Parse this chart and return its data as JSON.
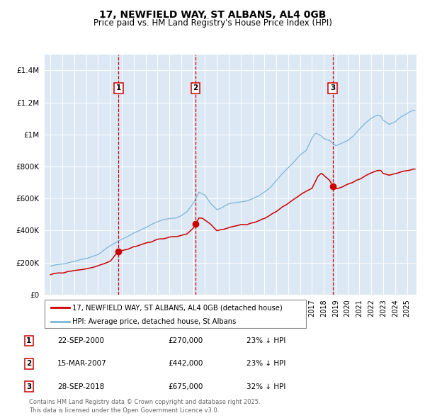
{
  "title_line1": "17, NEWFIELD WAY, ST ALBANS, AL4 0GB",
  "title_line2": "Price paid vs. HM Land Registry's House Price Index (HPI)",
  "bg_color": "#dce9f5",
  "red_line_color": "#cc0000",
  "blue_line_color": "#7bb4d8",
  "vline_color": "#cc0000",
  "transactions": [
    {
      "label": "1",
      "date_num": 2000.73,
      "price": 270000,
      "pct": "23%",
      "date_str": "22-SEP-2000"
    },
    {
      "label": "2",
      "date_num": 2007.21,
      "price": 442000,
      "pct": "23%",
      "date_str": "15-MAR-2007"
    },
    {
      "label": "3",
      "date_num": 2018.74,
      "price": 675000,
      "pct": "32%",
      "date_str": "28-SEP-2018"
    }
  ],
  "legend_entries": [
    "17, NEWFIELD WAY, ST ALBANS, AL4 0GB (detached house)",
    "HPI: Average price, detached house, St Albans"
  ],
  "footer_line1": "Contains HM Land Registry data © Crown copyright and database right 2025.",
  "footer_line2": "This data is licensed under the Open Government Licence v3.0.",
  "ylim": [
    0,
    1500000
  ],
  "yticks": [
    0,
    200000,
    400000,
    600000,
    800000,
    1000000,
    1200000,
    1400000
  ],
  "ytick_labels": [
    "£0",
    "£200K",
    "£400K",
    "£600K",
    "£800K",
    "£1M",
    "£1.2M",
    "£1.4M"
  ],
  "xlim_start": 1994.5,
  "xlim_end": 2025.8,
  "hpi_cp": [
    [
      1995.0,
      175000
    ],
    [
      1996.0,
      195000
    ],
    [
      1997.0,
      210000
    ],
    [
      1998.0,
      228000
    ],
    [
      1999.0,
      252000
    ],
    [
      2000.0,
      305000
    ],
    [
      2001.0,
      345000
    ],
    [
      2002.0,
      385000
    ],
    [
      2002.5,
      400000
    ],
    [
      2003.5,
      440000
    ],
    [
      2004.5,
      468000
    ],
    [
      2005.5,
      478000
    ],
    [
      2006.0,
      495000
    ],
    [
      2006.5,
      520000
    ],
    [
      2007.0,
      570000
    ],
    [
      2007.5,
      640000
    ],
    [
      2008.0,
      620000
    ],
    [
      2008.5,
      565000
    ],
    [
      2009.0,
      530000
    ],
    [
      2009.5,
      545000
    ],
    [
      2010.0,
      565000
    ],
    [
      2010.5,
      575000
    ],
    [
      2011.5,
      585000
    ],
    [
      2012.5,
      610000
    ],
    [
      2013.5,
      670000
    ],
    [
      2014.5,
      755000
    ],
    [
      2015.5,
      830000
    ],
    [
      2016.0,
      870000
    ],
    [
      2016.5,
      900000
    ],
    [
      2017.0,
      980000
    ],
    [
      2017.3,
      1010000
    ],
    [
      2017.8,
      990000
    ],
    [
      2018.0,
      975000
    ],
    [
      2018.5,
      960000
    ],
    [
      2019.0,
      930000
    ],
    [
      2019.5,
      945000
    ],
    [
      2020.0,
      960000
    ],
    [
      2020.5,
      990000
    ],
    [
      2021.0,
      1030000
    ],
    [
      2021.5,
      1070000
    ],
    [
      2022.0,
      1100000
    ],
    [
      2022.5,
      1120000
    ],
    [
      2022.8,
      1115000
    ],
    [
      2023.0,
      1090000
    ],
    [
      2023.5,
      1065000
    ],
    [
      2024.0,
      1080000
    ],
    [
      2024.5,
      1110000
    ],
    [
      2025.0,
      1130000
    ],
    [
      2025.5,
      1150000
    ]
  ],
  "red_cp": [
    [
      1995.0,
      125000
    ],
    [
      1996.0,
      138000
    ],
    [
      1997.0,
      150000
    ],
    [
      1998.0,
      162000
    ],
    [
      1999.0,
      178000
    ],
    [
      1999.5,
      190000
    ],
    [
      2000.0,
      210000
    ],
    [
      2000.73,
      270000
    ],
    [
      2001.0,
      278000
    ],
    [
      2001.5,
      285000
    ],
    [
      2002.0,
      300000
    ],
    [
      2002.5,
      310000
    ],
    [
      2003.0,
      322000
    ],
    [
      2003.5,
      332000
    ],
    [
      2004.0,
      342000
    ],
    [
      2004.5,
      352000
    ],
    [
      2005.0,
      358000
    ],
    [
      2005.5,
      362000
    ],
    [
      2006.0,
      370000
    ],
    [
      2006.5,
      382000
    ],
    [
      2007.0,
      415000
    ],
    [
      2007.21,
      442000
    ],
    [
      2007.5,
      480000
    ],
    [
      2007.8,
      478000
    ],
    [
      2008.0,
      468000
    ],
    [
      2008.5,
      440000
    ],
    [
      2009.0,
      400000
    ],
    [
      2009.5,
      408000
    ],
    [
      2010.0,
      418000
    ],
    [
      2010.5,
      428000
    ],
    [
      2011.0,
      435000
    ],
    [
      2011.5,
      440000
    ],
    [
      2012.0,
      448000
    ],
    [
      2012.5,
      460000
    ],
    [
      2013.0,
      475000
    ],
    [
      2013.5,
      498000
    ],
    [
      2014.0,
      520000
    ],
    [
      2014.5,
      545000
    ],
    [
      2015.0,
      570000
    ],
    [
      2015.5,
      595000
    ],
    [
      2016.0,
      620000
    ],
    [
      2016.5,
      645000
    ],
    [
      2017.0,
      665000
    ],
    [
      2017.5,
      740000
    ],
    [
      2017.8,
      760000
    ],
    [
      2018.0,
      748000
    ],
    [
      2018.5,
      710000
    ],
    [
      2018.74,
      675000
    ],
    [
      2019.0,
      660000
    ],
    [
      2019.5,
      672000
    ],
    [
      2020.0,
      690000
    ],
    [
      2020.5,
      705000
    ],
    [
      2021.0,
      720000
    ],
    [
      2021.5,
      742000
    ],
    [
      2022.0,
      760000
    ],
    [
      2022.5,
      775000
    ],
    [
      2022.8,
      778000
    ],
    [
      2023.0,
      758000
    ],
    [
      2023.5,
      745000
    ],
    [
      2024.0,
      755000
    ],
    [
      2024.5,
      768000
    ],
    [
      2025.0,
      775000
    ],
    [
      2025.5,
      782000
    ]
  ]
}
